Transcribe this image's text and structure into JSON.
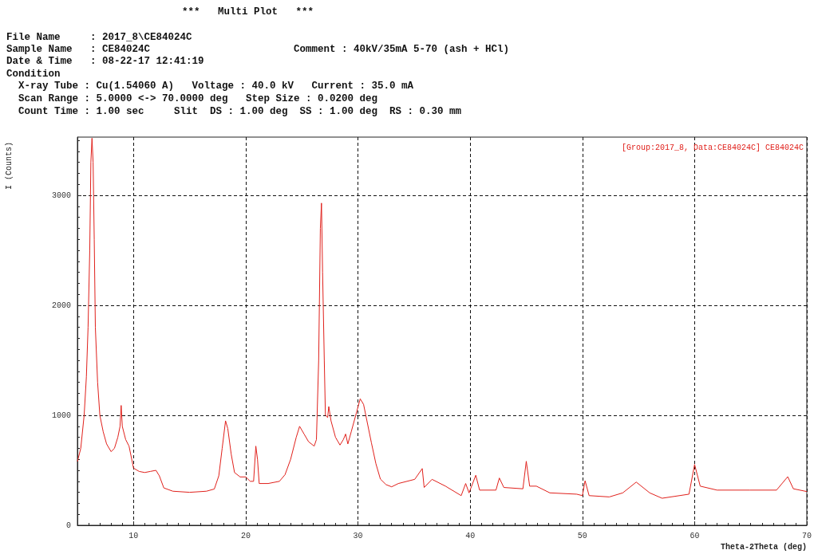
{
  "chart_data": {
    "type": "line",
    "title": "***   Multi Plot   ***",
    "annotations": [
      "File Name     : 2017_8\\CE84024C",
      "Sample Name   : CE84024C",
      "Comment : 40kV/35mA 5-70 (ash + HCl)",
      "Date & Time   : 08-22-17 12:41:19",
      "Condition",
      "  X-ray Tube : Cu(1.54060 A)   Voltage : 40.0 kV   Current : 35.0 mA",
      "  Scan Range : 5.0000 <-> 70.0000 deg   Step Size : 0.0200 deg",
      "  Count Time : 1.00 sec     Slit  DS : 1.00 deg  SS : 1.00 deg  RS : 0.30 mm"
    ],
    "xlabel": "Theta-2Theta (deg)",
    "ylabel": "I (Counts)",
    "xlim": [
      5,
      70
    ],
    "xticks": [
      10,
      20,
      30,
      40,
      50,
      60,
      70
    ],
    "ylim": [
      0,
      3530
    ],
    "yticks": [
      0,
      1000,
      2000,
      3000
    ],
    "grid": true,
    "legend": "top right",
    "marker": "none",
    "line_style": "solid",
    "series": [
      {
        "name": "[Group:2017_8, Data:CE84024C] CE84024C",
        "color": "#e0201b",
        "x": [
          5.0,
          5.3,
          5.6,
          5.8,
          5.95,
          6.1,
          6.2,
          6.3,
          6.4,
          6.5,
          6.6,
          6.8,
          7.0,
          7.3,
          7.6,
          8.0,
          8.3,
          8.6,
          8.8,
          8.9,
          9.0,
          9.3,
          9.6,
          10.0,
          10.5,
          11.0,
          11.5,
          12.0,
          12.3,
          12.7,
          13.5,
          15.0,
          16.5,
          17.2,
          17.6,
          17.9,
          18.2,
          18.4,
          18.7,
          19.0,
          19.5,
          20.0,
          20.4,
          20.7,
          20.9,
          21.05,
          21.2,
          22.0,
          23.0,
          23.5,
          24.0,
          24.5,
          24.8,
          25.2,
          25.6,
          26.1,
          26.3,
          26.5,
          26.65,
          26.75,
          26.85,
          27.0,
          27.1,
          27.3,
          27.4,
          27.6,
          28.0,
          28.4,
          28.7,
          28.9,
          29.1,
          29.4,
          29.8,
          30.2,
          30.5,
          30.8,
          31.2,
          31.6,
          32.0,
          32.5,
          33.0,
          33.6,
          35.06,
          35.73,
          35.9,
          36.6,
          37.8,
          39.2,
          39.6,
          39.9,
          40.5,
          40.84,
          42.3,
          42.6,
          43.0,
          44.7,
          45.0,
          45.3,
          45.9,
          47.1,
          49.5,
          50.0,
          50.24,
          50.6,
          52.4,
          53.6,
          54.8,
          56.0,
          57.1,
          59.5,
          60.0,
          60.5,
          62.0,
          64.9,
          67.3,
          68.3,
          68.8,
          70.0
        ],
        "values": [
          580,
          700,
          1000,
          1350,
          1800,
          2500,
          3300,
          3520,
          3300,
          2600,
          1800,
          1300,
          1000,
          850,
          740,
          670,
          700,
          800,
          900,
          1090,
          900,
          780,
          720,
          520,
          490,
          480,
          490,
          500,
          450,
          340,
          310,
          300,
          310,
          330,
          450,
          700,
          950,
          880,
          650,
          480,
          440,
          440,
          400,
          400,
          720,
          600,
          380,
          380,
          400,
          460,
          600,
          800,
          900,
          830,
          760,
          720,
          780,
          1500,
          2700,
          2930,
          2300,
          1500,
          1000,
          980,
          1080,
          950,
          800,
          730,
          780,
          830,
          740,
          850,
          1000,
          1150,
          1100,
          950,
          750,
          560,
          420,
          370,
          350,
          380,
          418,
          516,
          344,
          418,
          356,
          270,
          380,
          295,
          455,
          320,
          320,
          430,
          344,
          332,
          582,
          356,
          356,
          295,
          283,
          270,
          405,
          270,
          258,
          295,
          393,
          295,
          246,
          283,
          553,
          356,
          320,
          320,
          320,
          442,
          332,
          307
        ]
      }
    ]
  }
}
